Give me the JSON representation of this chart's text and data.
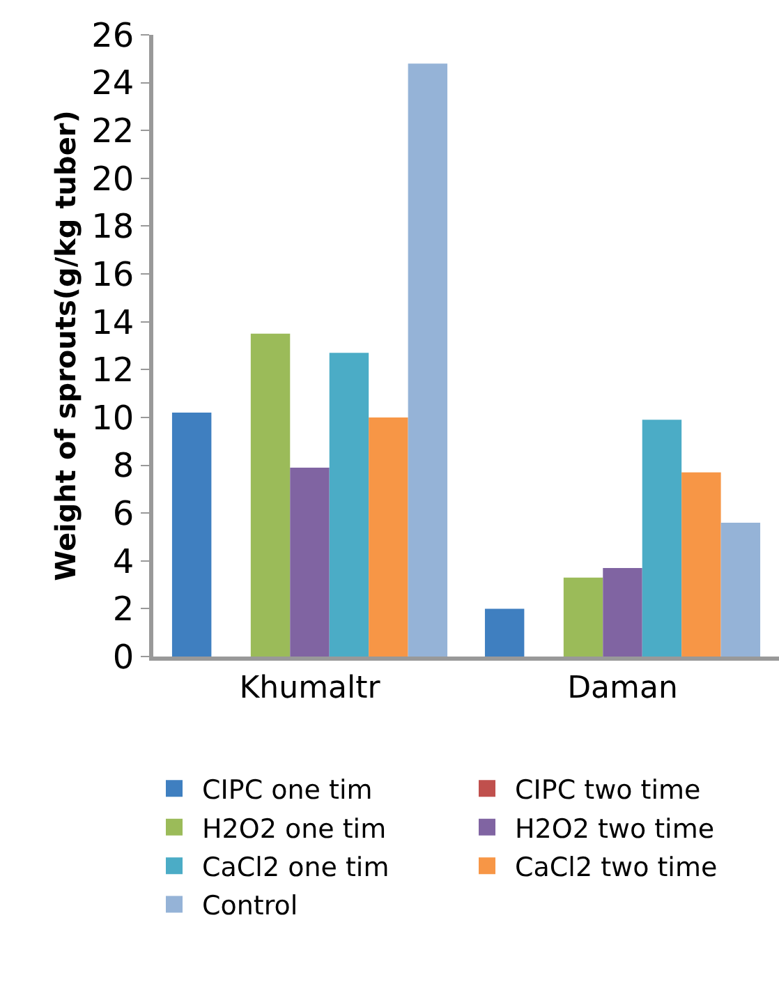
{
  "chart_data": {
    "type": "bar",
    "ylabel": "Weight of sprouts(g/kg tuber)",
    "categories": [
      "Khumaltr",
      "Daman"
    ],
    "series": [
      {
        "name": "CIPC one tim",
        "color": "#3f7fc0",
        "values": [
          10.2,
          2.0
        ]
      },
      {
        "name": "CIPC two time",
        "color": "#c0504d",
        "values": [
          null,
          null
        ]
      },
      {
        "name": "H2O2 one tim",
        "color": "#9bbb59",
        "values": [
          13.5,
          3.3
        ]
      },
      {
        "name": "H2O2 two time",
        "color": "#8064a2",
        "values": [
          7.9,
          3.7
        ]
      },
      {
        "name": "CaCl2 one tim",
        "color": "#4bacc6",
        "values": [
          12.7,
          9.9
        ]
      },
      {
        "name": "CaCl2 two time",
        "color": "#f79646",
        "values": [
          10.0,
          7.7
        ]
      },
      {
        "name": "Control",
        "color": "#95b3d7",
        "values": [
          24.8,
          5.6
        ]
      }
    ],
    "ylim": [
      0,
      26
    ],
    "yticks": [
      0,
      2,
      4,
      6,
      8,
      10,
      12,
      14,
      16,
      18,
      20,
      22,
      24,
      26
    ],
    "legend": "bottom"
  }
}
